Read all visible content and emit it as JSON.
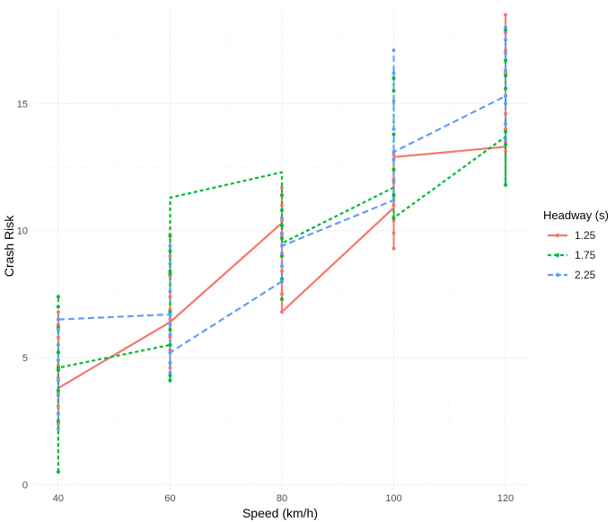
{
  "chart_data": {
    "type": "line",
    "xlabel": "Speed (km/h)",
    "ylabel": "Crash Risk",
    "x_ticks": [
      40,
      60,
      80,
      100,
      120
    ],
    "y_ticks": [
      0,
      5,
      10,
      15
    ],
    "xlim": [
      36,
      124
    ],
    "ylim": [
      -0.2,
      18.8
    ],
    "grid": true,
    "legend": {
      "title": "Headway (s)",
      "placement": "right"
    },
    "series": [
      {
        "name": "1.25",
        "color": "#F8766D",
        "dash": "solid",
        "points": [
          [
            40,
            3.8
          ],
          [
            60,
            6.4
          ],
          [
            80,
            10.3
          ],
          [
            80,
            6.8
          ],
          [
            100,
            10.9
          ],
          [
            100,
            12.9
          ],
          [
            120,
            13.3
          ]
        ],
        "spread": [
          {
            "x": 40,
            "values": [
              2.4,
              3.1,
              3.6,
              4.2,
              4.7,
              5.2,
              5.8,
              6.3,
              6.8
            ]
          },
          {
            "x": 60,
            "values": [
              4.6,
              5.3,
              5.8,
              6.5,
              6.9,
              7.4,
              8.2,
              9.0,
              9.8
            ]
          },
          {
            "x": 80,
            "values": [
              6.8,
              7.5,
              8.4,
              9.0,
              9.8,
              10.4,
              11.0,
              11.7
            ]
          },
          {
            "x": 100,
            "values": [
              9.3,
              9.9,
              10.4,
              11.0,
              11.9,
              12.4,
              13.0
            ]
          },
          {
            "x": 120,
            "values": [
              13.1,
              13.5,
              14.0,
              14.6,
              15.3,
              16.2,
              17.1,
              17.8,
              18.5
            ]
          }
        ]
      },
      {
        "name": "1.75",
        "color": "#00BA38",
        "dash": "dashed",
        "points": [
          [
            40,
            0.5
          ],
          [
            40,
            4.6
          ],
          [
            60,
            5.5
          ],
          [
            60,
            11.3
          ],
          [
            80,
            12.3
          ],
          [
            80,
            9.5
          ],
          [
            100,
            11.7
          ],
          [
            100,
            10.5
          ],
          [
            120,
            13.7
          ],
          [
            120,
            11.8
          ]
        ],
        "spread": [
          {
            "x": 40,
            "values": [
              0.5,
              2.5,
              3.7,
              4.5,
              4.6,
              5.2,
              6.2,
              7.0,
              7.4
            ]
          },
          {
            "x": 60,
            "values": [
              4.1,
              4.3,
              5.5,
              6.1,
              6.8,
              8.3,
              8.4,
              9.2,
              9.8
            ]
          },
          {
            "x": 80,
            "values": [
              7.3,
              8.1,
              9.0,
              9.7,
              10.2,
              10.8,
              11.4
            ]
          },
          {
            "x": 100,
            "values": [
              10.5,
              11.4,
              12.0,
              12.4,
              13.8,
              15.5,
              16.0
            ]
          },
          {
            "x": 120,
            "values": [
              11.8,
              13.4,
              13.9,
              15.6,
              16.1,
              16.7,
              17.9
            ]
          }
        ]
      },
      {
        "name": "2.25",
        "color": "#619CFF",
        "dash": "dashed",
        "points": [
          [
            40,
            6.5
          ],
          [
            60,
            6.7
          ],
          [
            60,
            5.2
          ],
          [
            80,
            8.0
          ],
          [
            80,
            9.4
          ],
          [
            100,
            11.2
          ],
          [
            100,
            13.1
          ],
          [
            120,
            15.3
          ]
        ],
        "spread": [
          {
            "x": 40,
            "values": [
              2.2,
              2.8,
              3.5,
              4.1,
              4.9,
              5.5,
              6.1,
              6.5
            ]
          },
          {
            "x": 60,
            "values": [
              4.4,
              4.8,
              5.2,
              5.9,
              6.3,
              6.7,
              7.6,
              8.7,
              9.4
            ]
          },
          {
            "x": 80,
            "values": [
              8.0,
              8.6,
              9.1,
              9.4,
              9.9,
              10.5
            ]
          },
          {
            "x": 100,
            "values": [
              11.2,
              12.0,
              12.8,
              13.1,
              14.0,
              15.1,
              16.2,
              17.1
            ]
          },
          {
            "x": 120,
            "values": [
              13.6,
              14.2,
              15.0,
              15.3,
              16.3,
              17.0,
              17.5,
              18.0
            ]
          }
        ]
      }
    ]
  }
}
